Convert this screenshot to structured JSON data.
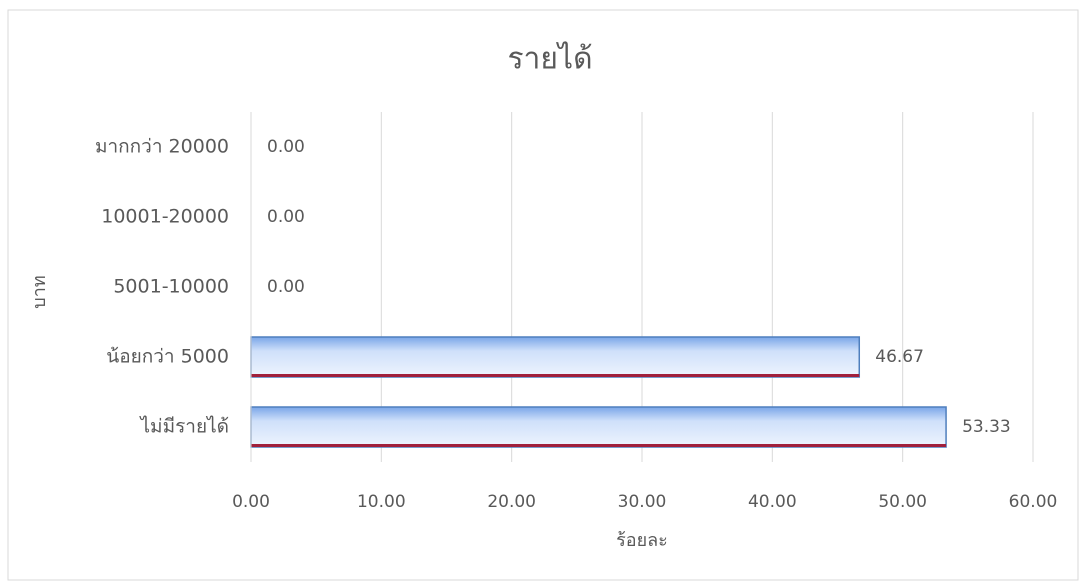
{
  "chart_data": {
    "type": "barh",
    "title": "รายได้",
    "xlabel": "ร้อยละ",
    "ylabel": "บาท",
    "categories": [
      "ไม่มีรายได้",
      "น้อยกว่า 5000",
      "5001-10000",
      "10001-20000",
      "มากกว่า 20000"
    ],
    "values": [
      53.33,
      46.67,
      0,
      0,
      0
    ],
    "value_labels": [
      "53.33",
      "46.67",
      "0.00",
      "0.00",
      "0.00"
    ],
    "color": "#a9c8f5",
    "xlim": [
      0,
      60
    ],
    "xticks": [
      {
        "value": 0,
        "label": "0.00"
      },
      {
        "value": 10,
        "label": "10.00"
      },
      {
        "value": 20,
        "label": "20.00"
      },
      {
        "value": 30,
        "label": "30.00"
      },
      {
        "value": 40,
        "label": "40.00"
      },
      {
        "value": 50,
        "label": "50.00"
      },
      {
        "value": 60,
        "label": "60.00"
      }
    ],
    "grid": true
  }
}
